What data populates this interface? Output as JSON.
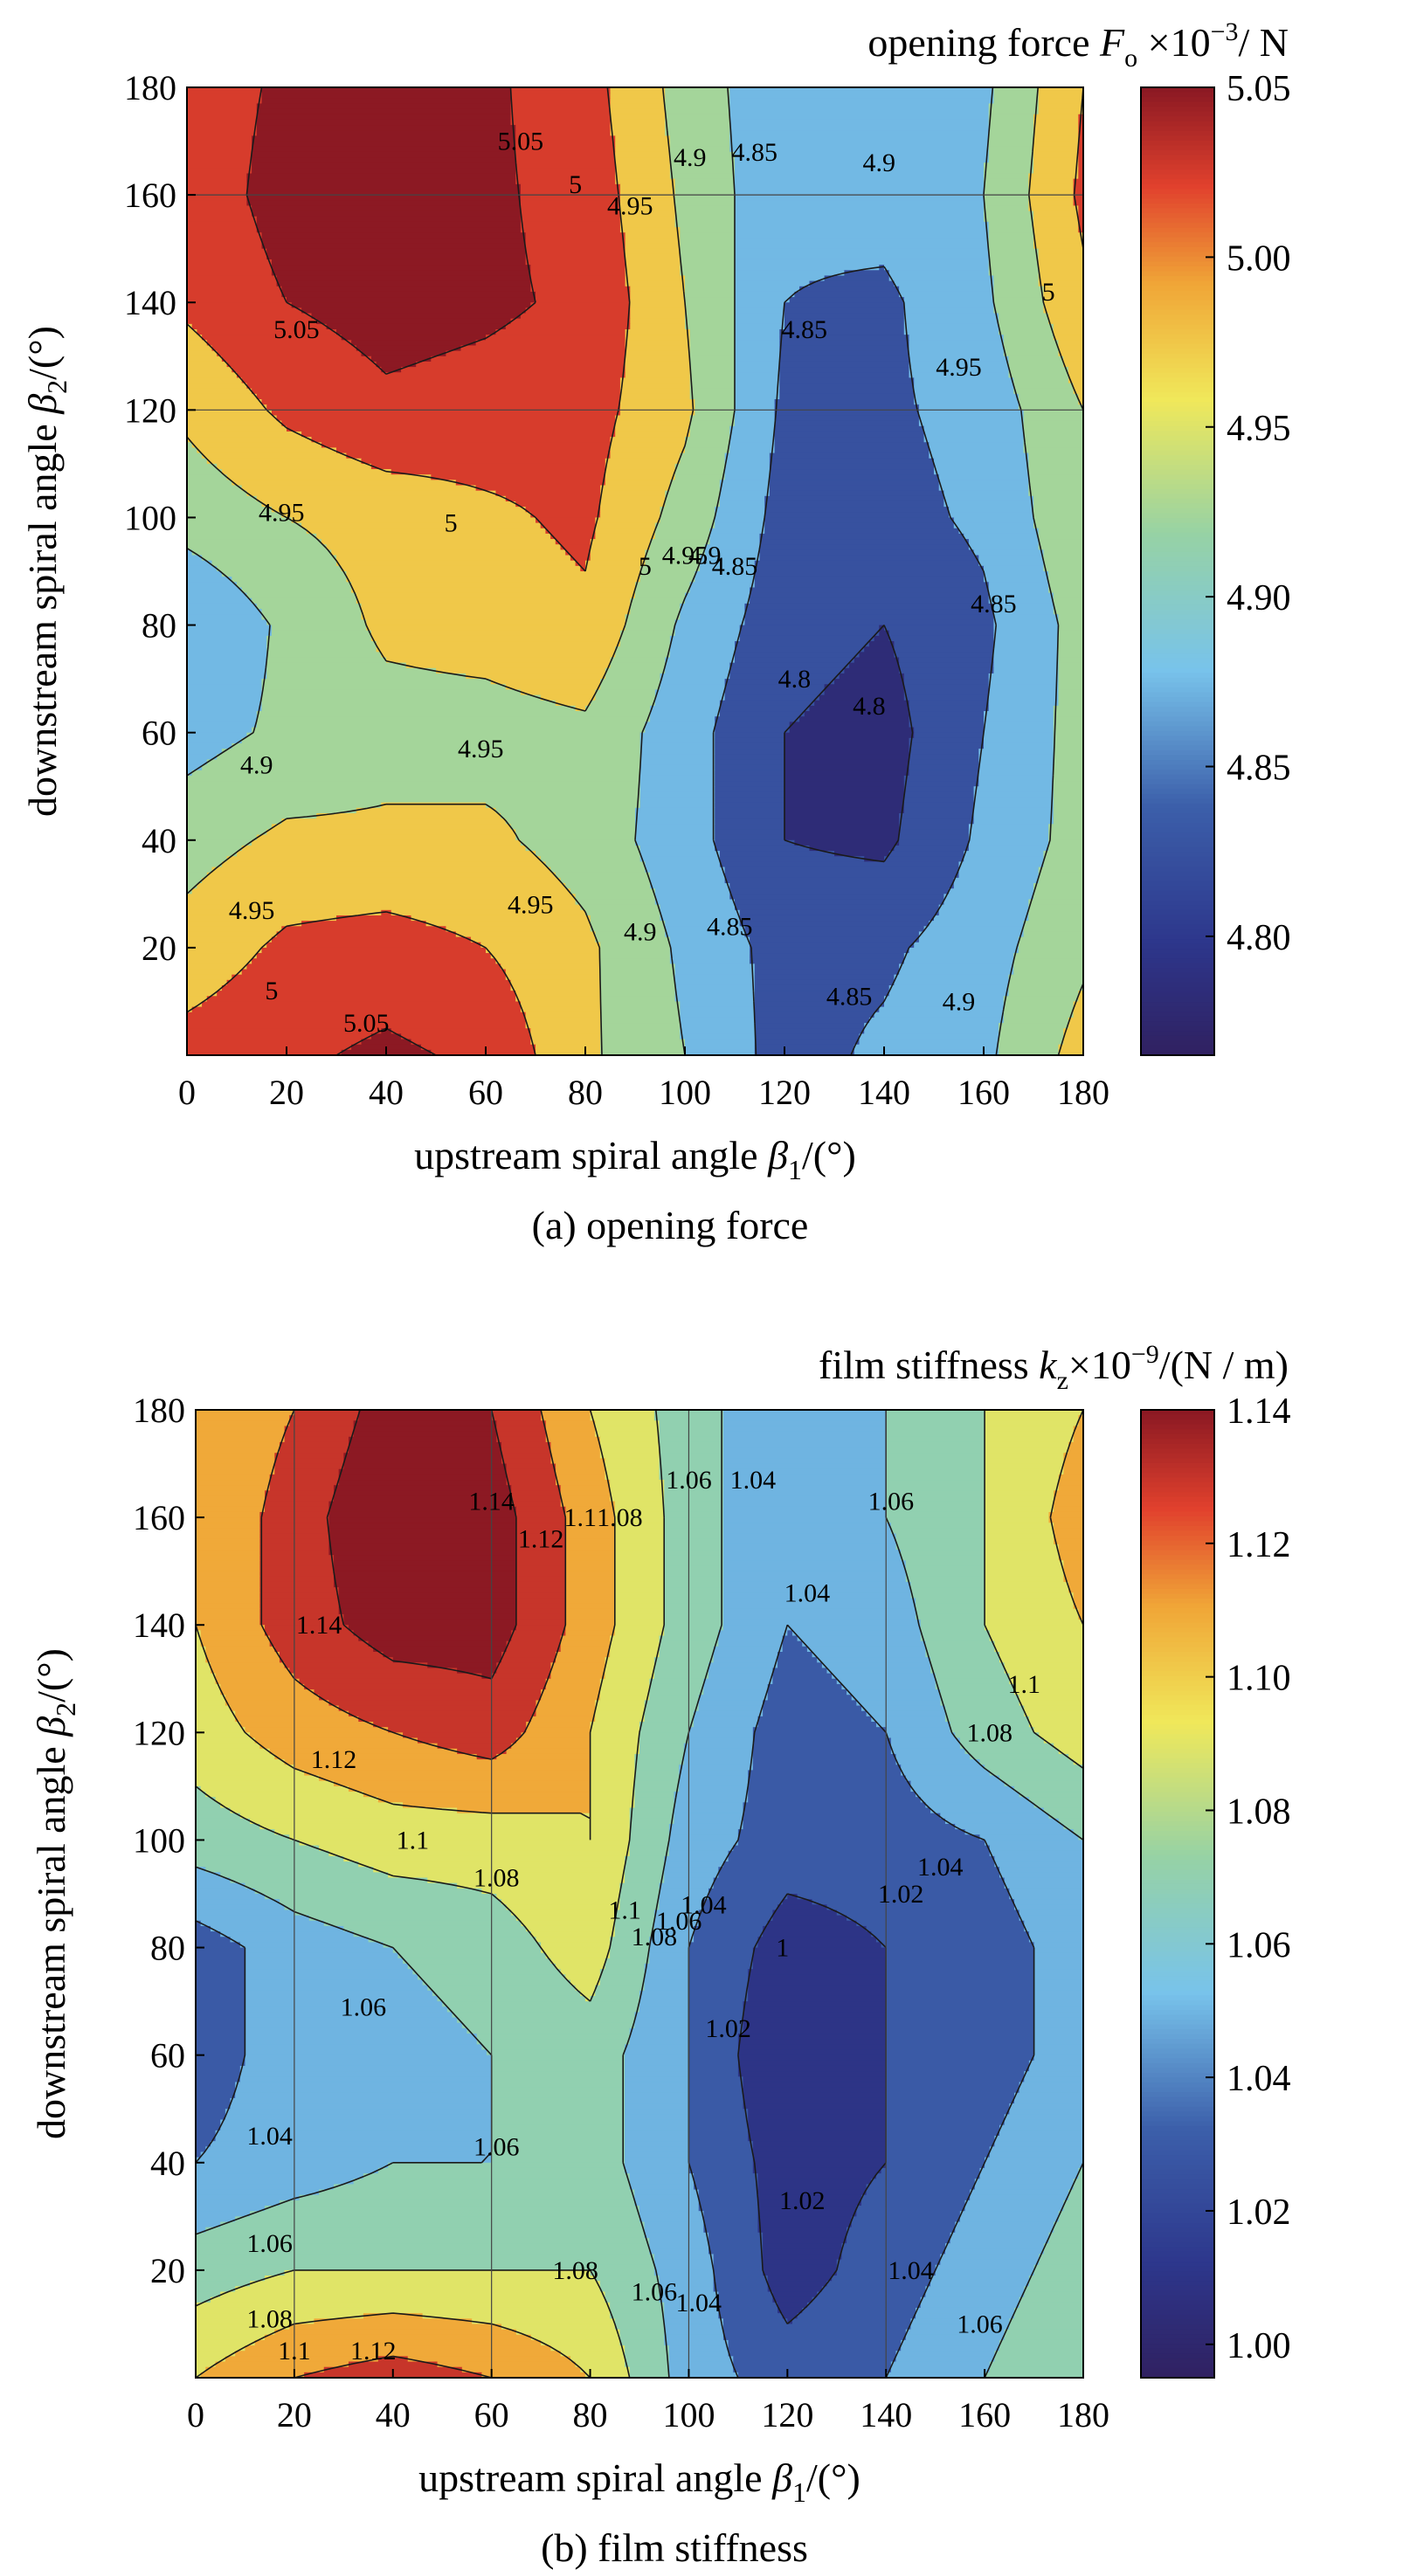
{
  "chart_data": [
    {
      "type": "heatmap",
      "title": "",
      "caption": "(a) opening force",
      "colorbar_label": "opening force F_o ×10^-3 / N",
      "colorbar_text": {
        "pre": "opening force ",
        "sym": "F",
        "sub": "o",
        "mult": " ×10",
        "exp": "−3",
        "unit": "/ N"
      },
      "xlabel": {
        "pre": "upstream spiral angle ",
        "sym": "β",
        "sub": "1",
        "post": "/(°)"
      },
      "ylabel": {
        "pre": "downstream spiral angle ",
        "sym": "β",
        "sub": "2",
        "post": "/(°)"
      },
      "xlim": [
        0,
        180
      ],
      "ylim": [
        0,
        180
      ],
      "xticks": [
        "0",
        "20",
        "40",
        "60",
        "80",
        "100",
        "120",
        "140",
        "160",
        "180"
      ],
      "yticks": [
        "20",
        "40",
        "60",
        "80",
        "100",
        "120",
        "140",
        "160",
        "180"
      ],
      "vmin": 4.765,
      "vmax": 5.05,
      "colorbar_ticks": [
        "4.80",
        "4.85",
        "4.90",
        "4.95",
        "5.00",
        "5.05"
      ],
      "colorbar_tick_values": [
        4.8,
        4.85,
        4.9,
        4.95,
        5.0,
        5.05
      ],
      "levels": [
        4.8,
        4.85,
        4.9,
        4.95,
        5.0,
        5.05
      ],
      "gridlines_y": [
        120,
        160
      ],
      "gridlines_x": [],
      "x": [
        0,
        20,
        40,
        60,
        80,
        100,
        120,
        140,
        160,
        180
      ],
      "y": [
        0,
        20,
        40,
        60,
        80,
        100,
        120,
        140,
        160,
        180
      ],
      "z": [
        [
          5.02,
          5.04,
          5.06,
          5.04,
          4.96,
          4.9,
          4.83,
          4.86,
          4.89,
          4.97
        ],
        [
          4.97,
          5.01,
          5.02,
          5.0,
          4.96,
          4.89,
          4.83,
          4.84,
          4.88,
          4.94
        ],
        [
          4.93,
          4.96,
          4.96,
          4.96,
          4.93,
          4.87,
          4.8,
          4.79,
          4.86,
          4.92
        ],
        [
          4.88,
          4.91,
          4.93,
          4.93,
          4.94,
          4.87,
          4.8,
          4.78,
          4.85,
          4.92
        ],
        [
          4.85,
          4.91,
          4.96,
          4.97,
          4.99,
          4.89,
          4.82,
          4.8,
          4.84,
          4.92
        ],
        [
          4.92,
          4.95,
          4.97,
          4.99,
          5.01,
          4.93,
          4.83,
          4.83,
          4.86,
          4.94
        ],
        [
          4.96,
          5.01,
          5.04,
          5.03,
          5.02,
          4.96,
          4.84,
          4.84,
          4.87,
          4.95
        ],
        [
          5.01,
          5.05,
          5.07,
          5.06,
          5.04,
          4.95,
          4.85,
          4.84,
          4.89,
          4.99
        ],
        [
          5.02,
          5.07,
          5.08,
          5.06,
          5.03,
          4.94,
          4.86,
          4.87,
          4.9,
          5.01
        ],
        [
          5.02,
          5.06,
          5.08,
          5.06,
          5.02,
          4.93,
          4.86,
          4.87,
          4.89,
          5.0
        ]
      ],
      "contour_labels": [
        {
          "text": "5.05",
          "x": 67,
          "y": 170
        },
        {
          "text": "5",
          "x": 78,
          "y": 162
        },
        {
          "text": "4.95",
          "x": 89,
          "y": 158
        },
        {
          "text": "4.9",
          "x": 101,
          "y": 167
        },
        {
          "text": "4.85",
          "x": 114,
          "y": 168
        },
        {
          "text": "4.9",
          "x": 139,
          "y": 166
        },
        {
          "text": "5",
          "x": 173,
          "y": 142
        },
        {
          "text": "5.05",
          "x": 22,
          "y": 135
        },
        {
          "text": "4.85",
          "x": 124,
          "y": 135
        },
        {
          "text": "4.95",
          "x": 155,
          "y": 128
        },
        {
          "text": "4.95",
          "x": 19,
          "y": 101
        },
        {
          "text": "5",
          "x": 53,
          "y": 99
        },
        {
          "text": "5",
          "x": 92,
          "y": 91
        },
        {
          "text": "4.95",
          "x": 100,
          "y": 93
        },
        {
          "text": "4.9",
          "x": 104,
          "y": 93
        },
        {
          "text": "4.85",
          "x": 110,
          "y": 91
        },
        {
          "text": "4.85",
          "x": 162,
          "y": 84
        },
        {
          "text": "4.8",
          "x": 122,
          "y": 70
        },
        {
          "text": "4.8",
          "x": 137,
          "y": 65
        },
        {
          "text": "4.9",
          "x": 14,
          "y": 54
        },
        {
          "text": "4.95",
          "x": 59,
          "y": 57
        },
        {
          "text": "4.95",
          "x": 13,
          "y": 27
        },
        {
          "text": "4.95",
          "x": 69,
          "y": 28
        },
        {
          "text": "4.9",
          "x": 91,
          "y": 23
        },
        {
          "text": "4.85",
          "x": 109,
          "y": 24
        },
        {
          "text": "4.85",
          "x": 133,
          "y": 11
        },
        {
          "text": "4.9",
          "x": 155,
          "y": 10
        },
        {
          "text": "5",
          "x": 17,
          "y": 12
        },
        {
          "text": "5.05",
          "x": 36,
          "y": 6
        }
      ]
    },
    {
      "type": "heatmap",
      "title": "",
      "caption": "(b) film stiffness",
      "colorbar_label": "film stiffness k_z ×10^-9 /(N / m)",
      "colorbar_text": {
        "pre": "film stiffness  ",
        "sym": "k",
        "sub": "z",
        "mult": "×10",
        "exp": "−9",
        "unit": "/(N / m)"
      },
      "xlabel": {
        "pre": "upstream spiral angle ",
        "sym": "β",
        "sub": "1",
        "post": "/(°)"
      },
      "ylabel": {
        "pre": "downstream spiral angle ",
        "sym": "β",
        "sub": "2",
        "post": "/(°)"
      },
      "xlim": [
        0,
        180
      ],
      "ylim": [
        0,
        180
      ],
      "xticks": [
        "0",
        "20",
        "40",
        "60",
        "80",
        "100",
        "120",
        "140",
        "160",
        "180"
      ],
      "yticks": [
        "20",
        "40",
        "60",
        "80",
        "100",
        "120",
        "140",
        "160",
        "180"
      ],
      "vmin": 0.995,
      "vmax": 1.14,
      "colorbar_ticks": [
        "1.00",
        "1.02",
        "1.04",
        "1.06",
        "1.08",
        "1.10",
        "1.12",
        "1.14"
      ],
      "colorbar_tick_values": [
        1.0,
        1.02,
        1.04,
        1.06,
        1.08,
        1.1,
        1.12,
        1.14
      ],
      "levels": [
        1.0,
        1.02,
        1.04,
        1.06,
        1.08,
        1.1,
        1.12,
        1.14
      ],
      "gridlines_y": [],
      "gridlines_x": [
        20,
        60,
        100,
        140
      ],
      "x": [
        0,
        20,
        40,
        60,
        80,
        100,
        120,
        140,
        160,
        180
      ],
      "y": [
        0,
        20,
        40,
        60,
        80,
        100,
        120,
        140,
        160,
        180
      ],
      "z": [
        [
          1.1,
          1.12,
          1.13,
          1.12,
          1.1,
          1.05,
          1.03,
          1.04,
          1.06,
          1.08
        ],
        [
          1.07,
          1.08,
          1.08,
          1.08,
          1.08,
          1.05,
          1.01,
          1.03,
          1.05,
          1.07
        ],
        [
          1.04,
          1.05,
          1.06,
          1.06,
          1.07,
          1.04,
          1.01,
          1.02,
          1.04,
          1.06
        ],
        [
          1.03,
          1.05,
          1.05,
          1.06,
          1.07,
          1.04,
          1.0,
          1.02,
          1.03,
          1.05
        ],
        [
          1.03,
          1.05,
          1.06,
          1.07,
          1.09,
          1.04,
          1.01,
          1.02,
          1.03,
          1.05
        ],
        [
          1.07,
          1.08,
          1.09,
          1.09,
          1.1,
          1.05,
          1.03,
          1.03,
          1.04,
          1.06
        ],
        [
          1.09,
          1.11,
          1.12,
          1.13,
          1.1,
          1.06,
          1.03,
          1.04,
          1.07,
          1.09
        ],
        [
          1.1,
          1.13,
          1.15,
          1.15,
          1.11,
          1.07,
          1.04,
          1.05,
          1.08,
          1.1
        ],
        [
          1.1,
          1.13,
          1.16,
          1.15,
          1.11,
          1.07,
          1.04,
          1.06,
          1.08,
          1.11
        ],
        [
          1.1,
          1.12,
          1.15,
          1.14,
          1.1,
          1.07,
          1.04,
          1.06,
          1.08,
          1.1
        ]
      ],
      "contour_labels": [
        {
          "text": "1.14",
          "x": 60,
          "y": 163
        },
        {
          "text": "1.12",
          "x": 70,
          "y": 156
        },
        {
          "text": "1.1",
          "x": 78,
          "y": 160
        },
        {
          "text": "1.08",
          "x": 86,
          "y": 160
        },
        {
          "text": "1.06",
          "x": 100,
          "y": 167
        },
        {
          "text": "1.04",
          "x": 113,
          "y": 167
        },
        {
          "text": "1.06",
          "x": 141,
          "y": 163
        },
        {
          "text": "1.14",
          "x": 25,
          "y": 140
        },
        {
          "text": "1.04",
          "x": 124,
          "y": 146
        },
        {
          "text": "1.1",
          "x": 168,
          "y": 129
        },
        {
          "text": "1.08",
          "x": 161,
          "y": 120
        },
        {
          "text": "1.12",
          "x": 28,
          "y": 115
        },
        {
          "text": "1.1",
          "x": 44,
          "y": 100
        },
        {
          "text": "1.08",
          "x": 61,
          "y": 93
        },
        {
          "text": "1.1",
          "x": 87,
          "y": 87
        },
        {
          "text": "1.08",
          "x": 93,
          "y": 82
        },
        {
          "text": "1.06",
          "x": 98,
          "y": 85
        },
        {
          "text": "1.04",
          "x": 103,
          "y": 88
        },
        {
          "text": "1",
          "x": 119,
          "y": 80
        },
        {
          "text": "1.02",
          "x": 143,
          "y": 90
        },
        {
          "text": "1.04",
          "x": 151,
          "y": 95
        },
        {
          "text": "1.06",
          "x": 34,
          "y": 69
        },
        {
          "text": "1.02",
          "x": 108,
          "y": 65
        },
        {
          "text": "1.04",
          "x": 15,
          "y": 45
        },
        {
          "text": "1.06",
          "x": 61,
          "y": 43
        },
        {
          "text": "1.02",
          "x": 123,
          "y": 33
        },
        {
          "text": "1.06",
          "x": 15,
          "y": 25
        },
        {
          "text": "1.08",
          "x": 77,
          "y": 20
        },
        {
          "text": "1.06",
          "x": 93,
          "y": 16
        },
        {
          "text": "1.04",
          "x": 102,
          "y": 14
        },
        {
          "text": "1.04",
          "x": 145,
          "y": 20
        },
        {
          "text": "1.06",
          "x": 159,
          "y": 10
        },
        {
          "text": "1.08",
          "x": 15,
          "y": 11
        },
        {
          "text": "1.1",
          "x": 20,
          "y": 5
        },
        {
          "text": "1.12",
          "x": 36,
          "y": 5
        }
      ]
    }
  ]
}
